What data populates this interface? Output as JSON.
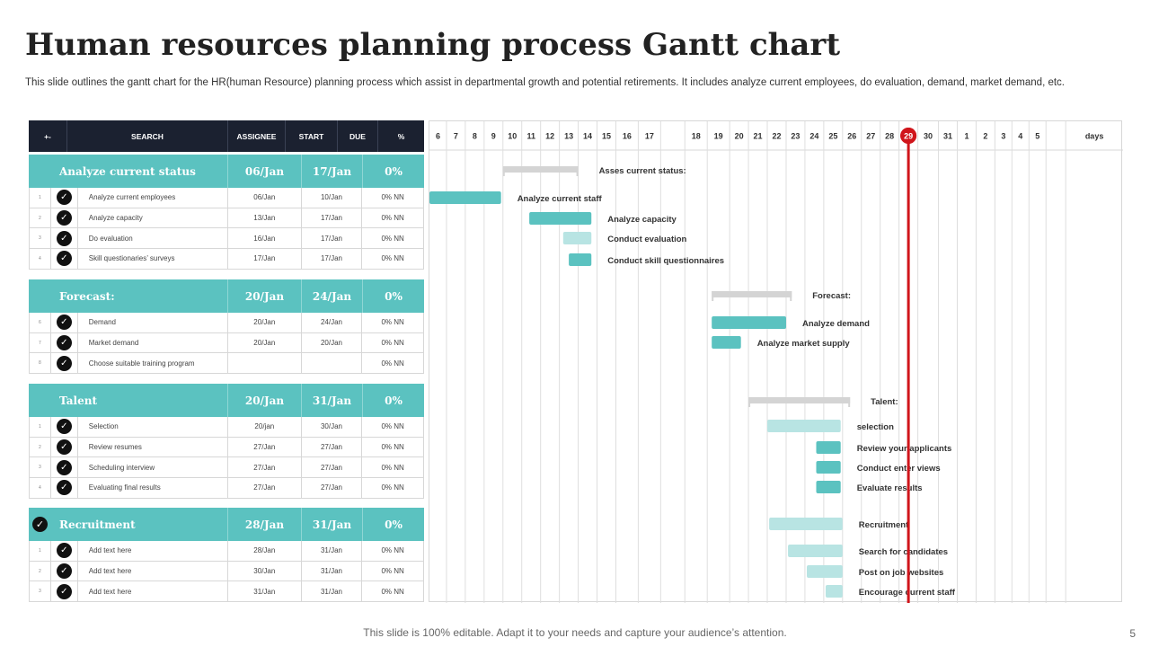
{
  "slide": {
    "title": "Human resources planning process Gantt chart",
    "subtitle": "This slide outlines the gantt chart for the HR(human Resource) planning process which assist in  departmental growth and potential retirements. It includes analyze current employees, do evaluation, demand, market demand, etc.",
    "footer": "This slide is 100% editable. Adapt it to your needs and capture your audience’s attention.",
    "page_number": "5"
  },
  "table": {
    "headers": [
      "+-",
      "SEARCH",
      "ASSIGNEE",
      "START",
      "DUE",
      "%"
    ],
    "groups": [
      {
        "name": "Analyze current status",
        "start": "06/Jan",
        "due": "17/Jan",
        "pct": "0%",
        "rows": [
          {
            "num": "1",
            "task": "Analyze current employees",
            "start": "06/Jan",
            "due": "10/Jan",
            "pct": "0% NN"
          },
          {
            "num": "2",
            "task": "Analyze capacity",
            "start": "13/Jan",
            "due": "17/Jan",
            "pct": "0% NN"
          },
          {
            "num": "3",
            "task": "Do evaluation",
            "start": "16/Jan",
            "due": "17/Jan",
            "pct": "0% NN"
          },
          {
            "num": "4",
            "task": "Skill questionaries’ surveys",
            "start": "17/Jan",
            "due": "17/Jan",
            "pct": "0% NN"
          }
        ]
      },
      {
        "name": "Forecast:",
        "start": "20/Jan",
        "due": "24/Jan",
        "pct": "0%",
        "rows": [
          {
            "num": "6",
            "task": "Demand",
            "start": "20/Jan",
            "due": "24/Jan",
            "pct": "0% NN"
          },
          {
            "num": "7",
            "task": "Market demand",
            "start": "20/Jan",
            "due": "20/Jan",
            "pct": "0% NN"
          },
          {
            "num": "8",
            "task": "Choose suitable training program",
            "start": "",
            "due": "",
            "pct": "0% NN"
          }
        ]
      },
      {
        "name": "Talent",
        "start": "20/Jan",
        "due": "31/Jan",
        "pct": "0%",
        "rows": [
          {
            "num": "1",
            "task": "Selection",
            "start": "20/jan",
            "due": "30/Jan",
            "pct": "0% NN"
          },
          {
            "num": "2",
            "task": "Review resumes",
            "start": "27/Jan",
            "due": "27/Jan",
            "pct": "0% NN"
          },
          {
            "num": "3",
            "task": "Scheduling  interview",
            "start": "27/Jan",
            "due": "27/Jan",
            "pct": "0% NN"
          },
          {
            "num": "4",
            "task": "Evaluating  final results",
            "start": "27/Jan",
            "due": "27/Jan",
            "pct": "0% NN"
          }
        ]
      },
      {
        "name": "Recruitment",
        "start": "28/Jan",
        "due": "31/Jan",
        "pct": "0%",
        "checked": true,
        "rows": [
          {
            "num": "1",
            "task": "Add text here",
            "start": "28/Jan",
            "due": "31/Jan",
            "pct": "0% NN"
          },
          {
            "num": "2",
            "task": "Add text here",
            "start": "30/Jan",
            "due": "31/Jan",
            "pct": "0% NN"
          },
          {
            "num": "3",
            "task": "Add text here",
            "start": "31/Jan",
            "due": "31/Jan",
            "pct": "0% NN"
          }
        ]
      }
    ]
  },
  "chart_data": {
    "type": "gantt",
    "columns": [
      "6",
      "7",
      "8",
      "9",
      "10",
      "11",
      "12",
      "13",
      "14",
      "15",
      "16",
      "17",
      "",
      "18",
      "19",
      "20",
      "21",
      "22",
      "23",
      "24",
      "25",
      "26",
      "27",
      "28",
      "29",
      "30",
      "31",
      "1",
      "2",
      "3",
      "4",
      "5",
      "",
      "days"
    ],
    "today_column": "29",
    "colors": {
      "summary": "#d4d4d4",
      "bar": "#5bc2c0",
      "bar_light": "#b8e4e3",
      "today": "#d0151b",
      "grid": "#dedede"
    },
    "groups": [
      {
        "summary": {
          "label": "Asses  current status:",
          "start": 10,
          "end": 14
        },
        "tasks": [
          {
            "label": "Analyze  current staff",
            "start": 6,
            "end": 9.9,
            "style": "bar"
          },
          {
            "label": "Analyze  capacity",
            "start": 11.4,
            "end": 14.7,
            "style": "bar"
          },
          {
            "label": "Conduct evaluation",
            "start": 13.2,
            "end": 14.7,
            "style": "bar_light"
          },
          {
            "label": "Conduct skill questionnaires",
            "start": 13.5,
            "end": 14.7,
            "style": "bar"
          }
        ]
      },
      {
        "summary": {
          "label": "Forecast:",
          "start": 19.2,
          "end": 23.3
        },
        "tasks": [
          {
            "label": "Analyze  demand",
            "start": 19.2,
            "end": 23.0,
            "style": "bar"
          },
          {
            "label": "Analyze  market supply",
            "start": 19.2,
            "end": 20.6,
            "style": "bar"
          }
        ]
      },
      {
        "summary": {
          "label": "Talent:",
          "start": 21.0,
          "end": 26.4
        },
        "tasks": [
          {
            "label": "selection",
            "start": 22.0,
            "end": 25.9,
            "style": "bar_light"
          },
          {
            "label": "Review your applicants",
            "start": 24.6,
            "end": 25.9,
            "style": "bar"
          },
          {
            "label": "Conduct enter views",
            "start": 24.6,
            "end": 25.9,
            "style": "bar"
          },
          {
            "label": "Evaluate results",
            "start": 24.6,
            "end": 25.9,
            "style": "bar"
          }
        ]
      },
      {
        "tasks": [
          {
            "label": "Recruitment",
            "start": 22.1,
            "end": 26.0,
            "style": "bar_light"
          },
          {
            "label": "Search for candidates",
            "start": 23.1,
            "end": 26.0,
            "style": "bar_light"
          },
          {
            "label": "Post on job websites",
            "start": 24.1,
            "end": 26.0,
            "style": "bar_light"
          },
          {
            "label": "Encourage current staff",
            "start": 25.1,
            "end": 26.0,
            "style": "bar_light"
          }
        ]
      }
    ]
  }
}
